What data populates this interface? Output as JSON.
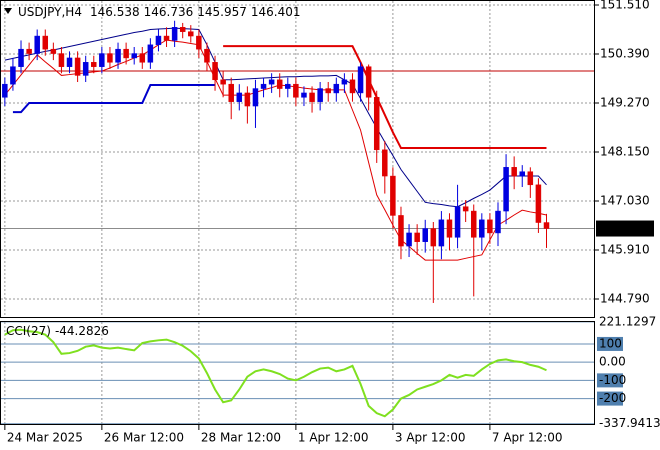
{
  "chart_data": [
    {
      "type": "candlestick",
      "title": "USDJPY,H4",
      "open": [
        149.4,
        149.7,
        150.1,
        150.5,
        150.4,
        150.8,
        150.5,
        150.4,
        150.1,
        150.3,
        149.9,
        150.2,
        150.1,
        150.4,
        150.2,
        150.5,
        150.3,
        150.4,
        150.2,
        150.6,
        150.8,
        150.7,
        151.0,
        150.9,
        150.8,
        150.5,
        150.2,
        149.8,
        149.7,
        149.3,
        149.5,
        149.2,
        149.6,
        149.7,
        149.8,
        149.6,
        149.7,
        149.4,
        149.5,
        149.3,
        149.6,
        149.5,
        149.7,
        149.8,
        149.5,
        150.1,
        149.4,
        148.2,
        147.6,
        146.7,
        146.0,
        146.3,
        146.1,
        146.4,
        146.0,
        146.6,
        146.2,
        146.9,
        146.8,
        146.2,
        146.6,
        146.3,
        146.8,
        147.8,
        147.6,
        147.7,
        147.4,
        146.538
      ],
      "high": [
        149.85,
        150.3,
        150.7,
        150.65,
        150.95,
        150.95,
        150.65,
        150.55,
        150.45,
        150.45,
        150.35,
        150.35,
        150.55,
        150.55,
        150.65,
        150.65,
        150.55,
        150.55,
        150.75,
        150.95,
        151.0,
        151.15,
        151.1,
        151.05,
        150.95,
        150.65,
        150.35,
        150.0,
        149.85,
        149.7,
        149.65,
        149.8,
        149.85,
        149.95,
        149.95,
        149.85,
        149.85,
        149.65,
        149.65,
        149.75,
        149.75,
        149.85,
        149.95,
        149.95,
        150.2,
        150.15,
        149.55,
        148.4,
        147.8,
        146.9,
        146.5,
        146.5,
        146.6,
        146.55,
        146.8,
        146.75,
        147.4,
        147.05,
        146.95,
        146.75,
        146.75,
        147.0,
        148.1,
        148.05,
        147.85,
        147.8,
        147.55,
        146.736
      ],
      "low": [
        149.2,
        149.55,
        149.95,
        150.25,
        150.25,
        150.35,
        150.25,
        149.95,
        149.95,
        149.75,
        149.75,
        149.95,
        149.95,
        150.05,
        150.05,
        150.15,
        150.15,
        150.05,
        150.05,
        150.45,
        150.55,
        150.55,
        150.75,
        150.65,
        150.3,
        150.0,
        149.55,
        149.4,
        148.9,
        149.1,
        148.8,
        148.7,
        149.4,
        149.5,
        149.4,
        149.4,
        149.2,
        149.2,
        149.05,
        149.1,
        149.3,
        149.3,
        149.5,
        149.3,
        149.3,
        149.1,
        147.9,
        147.2,
        146.4,
        145.7,
        145.75,
        145.8,
        145.85,
        144.7,
        145.7,
        145.9,
        145.95,
        146.55,
        144.85,
        145.9,
        146.05,
        146.0,
        146.5,
        147.3,
        147.35,
        147.1,
        146.3,
        145.957
      ],
      "close": [
        149.7,
        150.1,
        150.5,
        150.4,
        150.8,
        150.5,
        150.4,
        150.1,
        150.3,
        149.9,
        150.2,
        150.1,
        150.4,
        150.2,
        150.5,
        150.3,
        150.4,
        150.2,
        150.6,
        150.8,
        150.7,
        151.0,
        150.9,
        150.8,
        150.5,
        150.2,
        149.8,
        149.7,
        149.3,
        149.5,
        149.2,
        149.6,
        149.7,
        149.8,
        149.6,
        149.7,
        149.4,
        149.5,
        149.3,
        149.6,
        149.5,
        149.7,
        149.8,
        149.5,
        150.1,
        149.4,
        148.2,
        147.6,
        146.7,
        146.0,
        146.3,
        146.1,
        146.4,
        146.0,
        146.6,
        146.2,
        146.9,
        146.8,
        146.2,
        146.6,
        146.3,
        146.8,
        147.8,
        147.6,
        147.7,
        147.4,
        146.538,
        146.401
      ],
      "up_color": "#0000e0",
      "down_color": "#e00000",
      "lines": [
        {
          "color": "#00008b",
          "width": 1,
          "values": [
            150.25,
            150.29,
            150.33,
            150.37,
            150.41,
            150.45,
            150.48,
            150.52,
            150.56,
            150.6,
            150.64,
            150.68,
            150.72,
            150.76,
            150.8,
            150.84,
            150.88,
            150.91,
            150.95,
            150.96,
            150.97,
            150.98,
            150.97,
            150.96,
            150.95,
            150.6,
            150.2,
            149.8,
            149.8,
            149.81,
            149.82,
            149.83,
            149.84,
            149.85,
            149.86,
            149.87,
            149.87,
            149.88,
            149.88,
            149.89,
            149.89,
            149.9,
            149.8,
            149.7,
            149.37,
            149.03,
            148.7,
            148.38,
            148.07,
            147.75,
            147.5,
            147.25,
            147.0,
            146.97,
            146.95,
            146.92,
            146.9,
            146.99,
            147.09,
            147.18,
            147.28,
            147.44,
            147.6,
            147.6,
            147.6,
            147.6,
            147.6,
            147.4
          ]
        },
        {
          "color": "#e00000",
          "width": 1,
          "values": [
            149.45,
            149.68,
            149.91,
            150.14,
            150.37,
            150.21,
            150.06,
            149.9,
            149.92,
            149.94,
            149.96,
            149.98,
            150.0,
            150.07,
            150.15,
            150.22,
            150.3,
            150.37,
            150.48,
            150.6,
            150.71,
            150.68,
            150.66,
            150.63,
            150.6,
            150.22,
            149.83,
            149.45,
            149.45,
            149.45,
            149.45,
            149.51,
            149.57,
            149.62,
            149.68,
            149.66,
            149.64,
            149.61,
            149.59,
            149.57,
            149.57,
            149.57,
            149.57,
            149.11,
            148.65,
            147.91,
            147.17,
            146.83,
            146.48,
            146.14,
            145.99,
            145.83,
            145.68,
            145.68,
            145.68,
            145.68,
            145.68,
            145.72,
            145.76,
            145.8,
            146.14,
            146.48,
            146.59,
            146.71,
            146.82,
            146.78,
            146.75,
            146.71
          ]
        },
        {
          "color": "#0000cc",
          "width": 2,
          "values": [
            null,
            149.06,
            149.06,
            149.27,
            149.27,
            149.27,
            149.27,
            149.27,
            149.27,
            149.27,
            149.27,
            149.27,
            149.27,
            149.27,
            149.27,
            149.27,
            149.27,
            149.27,
            149.68,
            149.68,
            149.68,
            149.68,
            149.68,
            149.68,
            149.68,
            149.68,
            149.68,
            null,
            null,
            null,
            null,
            null,
            null,
            null,
            null,
            null,
            null,
            null,
            null,
            null,
            null,
            null,
            null,
            null,
            null,
            null,
            null,
            null,
            null,
            null,
            null,
            null,
            null,
            null,
            null,
            null,
            null,
            null,
            null,
            null,
            null,
            null,
            null,
            null,
            null,
            null,
            null,
            null
          ]
        },
        {
          "color": "#e00000",
          "width": 2,
          "values": [
            null,
            null,
            null,
            null,
            null,
            null,
            null,
            null,
            null,
            null,
            null,
            null,
            null,
            null,
            null,
            null,
            null,
            null,
            null,
            null,
            null,
            null,
            null,
            null,
            null,
            null,
            null,
            150.57,
            150.57,
            150.57,
            150.57,
            150.57,
            150.57,
            150.57,
            150.57,
            150.57,
            150.57,
            150.57,
            150.57,
            150.57,
            150.57,
            150.57,
            150.57,
            150.57,
            150.2,
            149.8,
            149.4,
            149.0,
            148.6,
            148.24,
            148.24,
            148.24,
            148.24,
            148.24,
            148.24,
            148.24,
            148.24,
            148.24,
            148.24,
            148.24,
            148.24,
            148.24,
            148.24,
            148.24,
            148.24,
            148.24,
            148.24,
            148.24
          ]
        }
      ],
      "hlines": [
        {
          "value": 150.0,
          "color": "#c00000"
        }
      ],
      "xlim": [
        -0.6,
        73
      ],
      "ylim": [
        144.356,
        151.624
      ],
      "xticks": [
        {
          "value": 0,
          "label": "24 Mar 2025"
        },
        {
          "value": 12,
          "label": "26 Mar 12:00"
        },
        {
          "value": 24,
          "label": "28 Mar 12:00"
        },
        {
          "value": 36,
          "label": "1 Apr 12:00"
        },
        {
          "value": 48,
          "label": "3 Apr 12:00"
        },
        {
          "value": 60,
          "label": "7 Apr 12:00"
        }
      ],
      "yticks": [
        {
          "value": 151.51,
          "label": "151.510"
        },
        {
          "value": 150.39,
          "label": "150.390"
        },
        {
          "value": 149.27,
          "label": "149.270"
        },
        {
          "value": 148.15,
          "label": "148.150"
        },
        {
          "value": 147.03,
          "label": "147.030"
        },
        {
          "value": 145.91,
          "label": "145.910"
        },
        {
          "value": 144.79,
          "label": "144.790"
        }
      ],
      "grid": true
    },
    {
      "type": "line",
      "title": "CCI(27)",
      "color": "#7fe01f",
      "values": [
        151,
        175,
        178,
        170,
        165,
        151,
        110,
        46,
        50,
        62,
        85,
        92,
        80,
        75,
        80,
        72,
        65,
        105,
        114,
        120,
        124,
        110,
        90,
        60,
        20,
        -60,
        -150,
        -220,
        -210,
        -150,
        -80,
        -50,
        -40,
        -50,
        -65,
        -90,
        -100,
        -80,
        -55,
        -35,
        -30,
        -50,
        -40,
        -20,
        -120,
        -240,
        -280,
        -297,
        -260,
        -200,
        -180,
        -150,
        -135,
        -120,
        -100,
        -70,
        -85,
        -70,
        -75,
        -40,
        -10,
        10,
        15,
        5,
        0,
        -15,
        -25,
        -44.2826
      ],
      "ylim": [
        -345,
        226
      ],
      "yticks": [
        221.1297,
        100,
        {
          "value": 0,
          "label": "0.00"
        },
        -100,
        -200,
        -337.9413
      ]
    }
  ]
}
